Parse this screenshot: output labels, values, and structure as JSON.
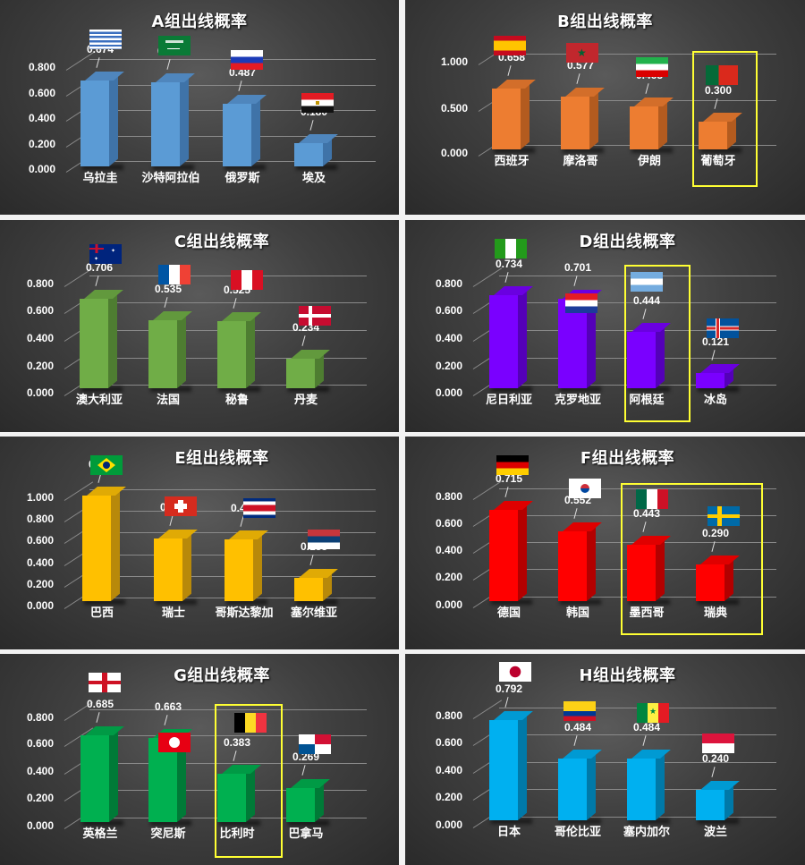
{
  "colors": {
    "A": {
      "front": "#5b9bd5",
      "side": "#3f73a8",
      "top": "#4f86bd"
    },
    "B": {
      "front": "#ed7d31",
      "side": "#b35b1f",
      "top": "#d36e2a"
    },
    "C": {
      "front": "#70ad47",
      "side": "#4e7d31",
      "top": "#62993d"
    },
    "D": {
      "front": "#7a00ff",
      "side": "#5400b8",
      "top": "#6a00e0"
    },
    "E": {
      "front": "#ffc000",
      "side": "#b8890a",
      "top": "#e0aa05"
    },
    "F": {
      "front": "#ff0000",
      "side": "#b30000",
      "top": "#e00000"
    },
    "G": {
      "front": "#00b050",
      "side": "#007a37",
      "top": "#009a45"
    },
    "H": {
      "front": "#00b0f0",
      "side": "#0079a8",
      "top": "#009ad3"
    },
    "highlight": "#ffff33"
  },
  "chart_data": [
    {
      "type": "bar",
      "title": "A组出线概率",
      "categories": [
        "乌拉圭",
        "沙特阿拉伯",
        "俄罗斯",
        "埃及"
      ],
      "values": [
        0.674,
        0.659,
        0.487,
        0.18
      ],
      "yticks": [
        "0.000",
        "0.200",
        "0.400",
        "0.600",
        "0.800"
      ],
      "ylim": [
        0,
        0.9
      ],
      "grid": true,
      "highlighted": []
    },
    {
      "type": "bar",
      "title": "B组出线概率",
      "categories": [
        "西班牙",
        "摩洛哥",
        "伊朗",
        "葡萄牙"
      ],
      "values": [
        0.658,
        0.577,
        0.465,
        0.3
      ],
      "yticks": [
        "0.000",
        "0.500",
        "1.000"
      ],
      "ylim": [
        0,
        1.0
      ],
      "grid": true,
      "highlighted": [
        "葡萄牙"
      ]
    },
    {
      "type": "bar",
      "title": "C组出线概率",
      "categories": [
        "澳大利亚",
        "法国",
        "秘鲁",
        "丹麦"
      ],
      "values": [
        0.706,
        0.535,
        0.525,
        0.234
      ],
      "yticks": [
        "0.000",
        "0.200",
        "0.400",
        "0.600",
        "0.800"
      ],
      "ylim": [
        0,
        0.9
      ],
      "grid": true,
      "highlighted": []
    },
    {
      "type": "bar",
      "title": "D组出线概率",
      "categories": [
        "尼日利亚",
        "克罗地亚",
        "阿根廷",
        "冰岛"
      ],
      "values": [
        0.734,
        0.701,
        0.444,
        0.121
      ],
      "yticks": [
        "0.000",
        "0.200",
        "0.400",
        "0.600",
        "0.800"
      ],
      "ylim": [
        0,
        0.9
      ],
      "grid": true,
      "highlighted": [
        "阿根廷"
      ]
    },
    {
      "type": "bar",
      "title": "E组出线概率",
      "categories": [
        "巴西",
        "瑞士",
        "哥斯达黎加",
        "塞尔维亚"
      ],
      "values": [
        0.83,
        0.496,
        0.489,
        0.185
      ],
      "yticks": [
        "0.000",
        "0.200",
        "0.400",
        "0.600",
        "0.800",
        "1.000"
      ],
      "ylim": [
        0,
        1.1
      ],
      "grid": true,
      "highlighted": []
    },
    {
      "type": "bar",
      "title": "F组出线概率",
      "categories": [
        "德国",
        "韩国",
        "墨西哥",
        "瑞典"
      ],
      "values": [
        0.715,
        0.552,
        0.443,
        0.29
      ],
      "yticks": [
        "0.000",
        "0.200",
        "0.400",
        "0.600",
        "0.800"
      ],
      "ylim": [
        0,
        0.9
      ],
      "grid": true,
      "highlighted": [
        "墨西哥",
        "瑞典"
      ]
    },
    {
      "type": "bar",
      "title": "G组出线概率",
      "categories": [
        "英格兰",
        "突尼斯",
        "比利时",
        "巴拿马"
      ],
      "values": [
        0.685,
        0.663,
        0.383,
        0.269
      ],
      "yticks": [
        "0.000",
        "0.200",
        "0.400",
        "0.600",
        "0.800"
      ],
      "ylim": [
        0,
        0.9
      ],
      "grid": true,
      "highlighted": [
        "比利时"
      ]
    },
    {
      "type": "bar",
      "title": "H组出线概率",
      "categories": [
        "日本",
        "哥伦比亚",
        "塞内加尔",
        "波兰"
      ],
      "values": [
        0.792,
        0.484,
        0.484,
        0.24
      ],
      "yticks": [
        "0.000",
        "0.200",
        "0.400",
        "0.600",
        "0.800"
      ],
      "ylim": [
        0,
        0.9
      ],
      "grid": true,
      "highlighted": []
    }
  ],
  "panels": [
    {
      "group": "A",
      "title": "A组出线概率",
      "yticks": [
        "0.800",
        "0.600",
        "0.400",
        "0.200",
        "0.000"
      ],
      "bars": [
        {
          "country": "乌拉圭",
          "value": "0.674",
          "flag": "uruguay-flag"
        },
        {
          "country": "沙特阿拉伯",
          "value": "0.659",
          "flag": "saudi-flag"
        },
        {
          "country": "俄罗斯",
          "value": "0.487",
          "flag": "russia-flag"
        },
        {
          "country": "埃及",
          "value": "0.180",
          "flag": "egypt-flag"
        }
      ]
    },
    {
      "group": "B",
      "title": "B组出线概率",
      "yticks": [
        "1.000",
        "0.500",
        "0.000"
      ],
      "bars": [
        {
          "country": "西班牙",
          "value": "0.658",
          "flag": "spain-flag"
        },
        {
          "country": "摩洛哥",
          "value": "0.577",
          "flag": "morocco-flag"
        },
        {
          "country": "伊朗",
          "value": "0.465",
          "flag": "iran-flag"
        },
        {
          "country": "葡萄牙",
          "value": "0.300",
          "flag": "portugal-flag"
        }
      ]
    },
    {
      "group": "C",
      "title": "C组出线概率",
      "yticks": [
        "0.800",
        "0.600",
        "0.400",
        "0.200",
        "0.000"
      ],
      "bars": [
        {
          "country": "澳大利亚",
          "value": "0.706",
          "flag": "australia-flag"
        },
        {
          "country": "法国",
          "value": "0.535",
          "flag": "france-flag"
        },
        {
          "country": "秘鲁",
          "value": "0.525",
          "flag": "peru-flag"
        },
        {
          "country": "丹麦",
          "value": "0.234",
          "flag": "denmark-flag"
        }
      ]
    },
    {
      "group": "D",
      "title": "D组出线概率",
      "yticks": [
        "0.800",
        "0.600",
        "0.400",
        "0.200",
        "0.000"
      ],
      "bars": [
        {
          "country": "尼日利亚",
          "value": "0.734",
          "flag": "nigeria-flag"
        },
        {
          "country": "克罗地亚",
          "value": "0.701",
          "flag": "croatia-flag"
        },
        {
          "country": "阿根廷",
          "value": "0.444",
          "flag": "argentina-flag"
        },
        {
          "country": "冰岛",
          "value": "0.121",
          "flag": "iceland-flag"
        }
      ]
    },
    {
      "group": "E",
      "title": "E组出线概率",
      "yticks": [
        "1.000",
        "0.800",
        "0.600",
        "0.400",
        "0.200",
        "0.000"
      ],
      "bars": [
        {
          "country": "巴西",
          "value": "0.830",
          "flag": "brazil-flag"
        },
        {
          "country": "瑞士",
          "value": "0.496",
          "flag": "switzerland-flag"
        },
        {
          "country": "哥斯达黎加",
          "value": "0.489",
          "flag": "costa-rica-flag"
        },
        {
          "country": "塞尔维亚",
          "value": "0.185",
          "flag": "serbia-flag"
        }
      ]
    },
    {
      "group": "F",
      "title": "F组出线概率",
      "yticks": [
        "0.800",
        "0.600",
        "0.400",
        "0.200",
        "0.000"
      ],
      "bars": [
        {
          "country": "德国",
          "value": "0.715",
          "flag": "germany-flag"
        },
        {
          "country": "韩国",
          "value": "0.552",
          "flag": "korea-flag"
        },
        {
          "country": "墨西哥",
          "value": "0.443",
          "flag": "mexico-flag"
        },
        {
          "country": "瑞典",
          "value": "0.290",
          "flag": "sweden-flag"
        }
      ]
    },
    {
      "group": "G",
      "title": "G组出线概率",
      "yticks": [
        "0.800",
        "0.600",
        "0.400",
        "0.200",
        "0.000"
      ],
      "bars": [
        {
          "country": "英格兰",
          "value": "0.685",
          "flag": "england-flag"
        },
        {
          "country": "突尼斯",
          "value": "0.663",
          "flag": "tunisia-flag"
        },
        {
          "country": "比利时",
          "value": "0.383",
          "flag": "belgium-flag"
        },
        {
          "country": "巴拿马",
          "value": "0.269",
          "flag": "panama-flag"
        }
      ]
    },
    {
      "group": "H",
      "title": "H组出线概率",
      "yticks": [
        "0.800",
        "0.600",
        "0.400",
        "0.200",
        "0.000"
      ],
      "bars": [
        {
          "country": "日本",
          "value": "0.792",
          "flag": "japan-flag"
        },
        {
          "country": "哥伦比亚",
          "value": "0.484",
          "flag": "colombia-flag"
        },
        {
          "country": "塞内加尔",
          "value": "0.484",
          "flag": "senegal-flag"
        },
        {
          "country": "波兰",
          "value": "0.240",
          "flag": "poland-flag"
        }
      ]
    }
  ]
}
